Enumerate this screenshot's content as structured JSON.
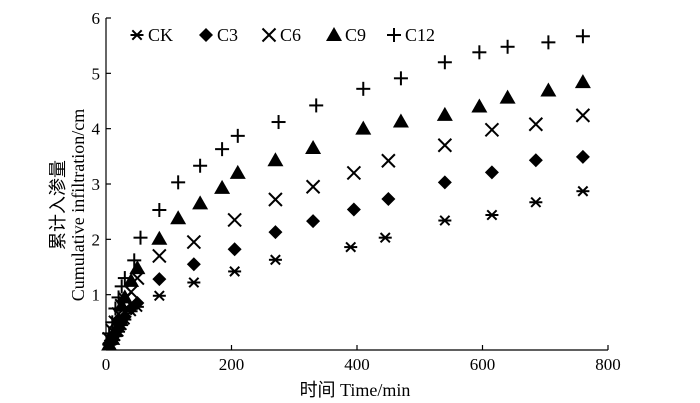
{
  "chart_data": {
    "type": "scatter",
    "xlabel": "时间 Time/min",
    "ylabel_cn": "累计入渗量",
    "ylabel_en": "Cumulative infiltration/cm",
    "xlim": [
      0,
      800
    ],
    "ylim": [
      0,
      6
    ],
    "xticks": [
      0,
      200,
      400,
      600,
      800
    ],
    "yticks": [
      1,
      2,
      3,
      4,
      5,
      6
    ],
    "grid": false,
    "legend_position": "top",
    "series": [
      {
        "name": "CK",
        "marker": "asterisk",
        "x": [
          5,
          10,
          15,
          20,
          25,
          30,
          40,
          50,
          85,
          140,
          205,
          270,
          390,
          445,
          540,
          615,
          685,
          760
        ],
        "y": [
          0.1,
          0.18,
          0.25,
          0.33,
          0.45,
          0.55,
          0.7,
          0.78,
          0.98,
          1.22,
          1.42,
          1.63,
          1.86,
          2.03,
          2.34,
          2.44,
          2.67,
          2.87
        ]
      },
      {
        "name": "C3",
        "marker": "diamond",
        "x": [
          5,
          10,
          15,
          20,
          25,
          30,
          40,
          50,
          85,
          140,
          205,
          270,
          330,
          395,
          450,
          540,
          615,
          685,
          760
        ],
        "y": [
          0.12,
          0.2,
          0.28,
          0.38,
          0.5,
          0.6,
          0.75,
          0.85,
          1.28,
          1.55,
          1.82,
          2.13,
          2.33,
          2.54,
          2.73,
          3.03,
          3.21,
          3.43,
          3.49
        ]
      },
      {
        "name": "C6",
        "marker": "x",
        "x": [
          5,
          10,
          15,
          20,
          25,
          30,
          40,
          50,
          85,
          140,
          205,
          270,
          330,
          395,
          450,
          540,
          615,
          685,
          760
        ],
        "y": [
          0.2,
          0.35,
          0.5,
          0.65,
          0.8,
          0.92,
          1.05,
          1.3,
          1.7,
          1.95,
          2.35,
          2.72,
          2.95,
          3.2,
          3.42,
          3.7,
          3.98,
          4.08,
          4.24
        ]
      },
      {
        "name": "C9",
        "marker": "triangle",
        "x": [
          5,
          10,
          15,
          20,
          25,
          30,
          40,
          50,
          85,
          115,
          150,
          185,
          210,
          270,
          330,
          410,
          470,
          540,
          595,
          640,
          705,
          760
        ],
        "y": [
          0.1,
          0.2,
          0.35,
          0.55,
          0.8,
          0.95,
          1.25,
          1.48,
          2.01,
          2.38,
          2.65,
          2.93,
          3.2,
          3.43,
          3.65,
          4.0,
          4.13,
          4.25,
          4.4,
          4.56,
          4.69,
          4.84
        ]
      },
      {
        "name": "C12",
        "marker": "plus",
        "x": [
          5,
          10,
          15,
          20,
          25,
          30,
          45,
          55,
          85,
          115,
          150,
          185,
          210,
          275,
          335,
          410,
          470,
          540,
          595,
          640,
          705,
          760
        ],
        "y": [
          0.3,
          0.5,
          0.75,
          0.95,
          1.15,
          1.3,
          1.62,
          2.03,
          2.53,
          3.03,
          3.33,
          3.63,
          3.87,
          4.12,
          4.42,
          4.72,
          4.91,
          5.2,
          5.38,
          5.48,
          5.56,
          5.67
        ]
      }
    ]
  }
}
